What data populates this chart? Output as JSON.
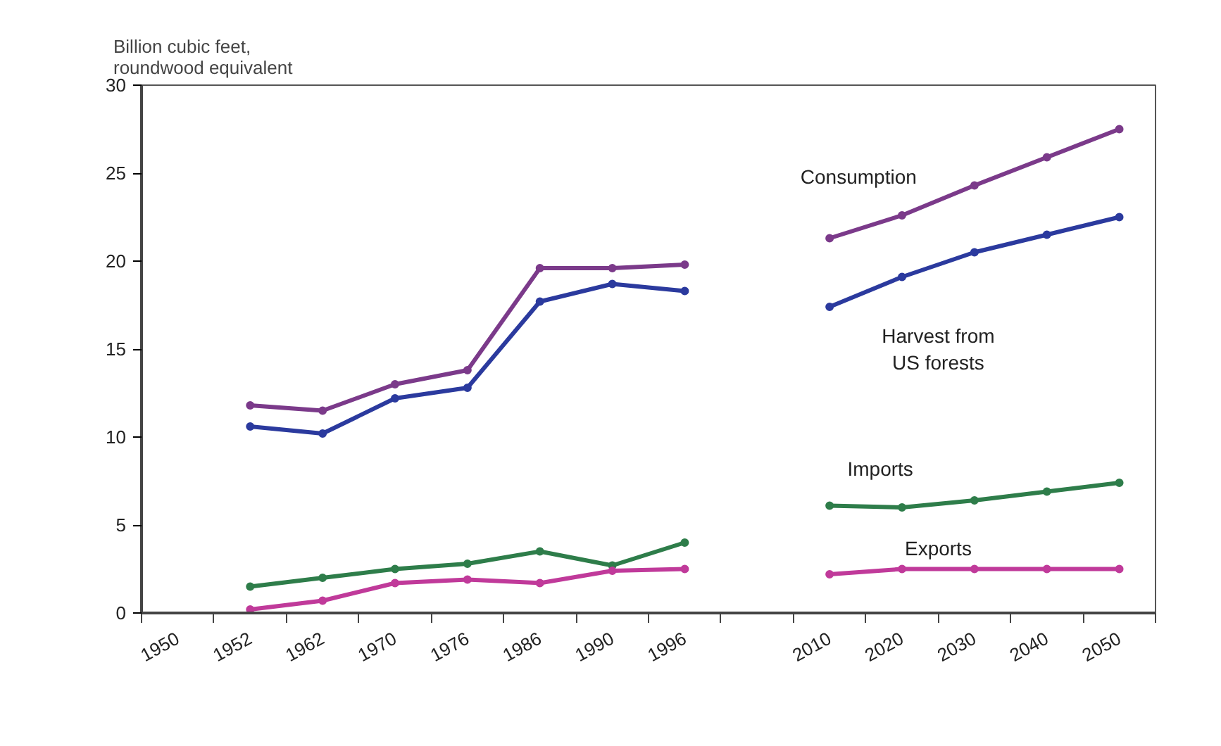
{
  "chart_data": {
    "type": "line",
    "ylabel": "Billion cubic feet,\nroundwood equivalent",
    "categories": [
      "1950",
      "1952",
      "1962",
      "1970",
      "1976",
      "1986",
      "1990",
      "1996",
      null,
      "2010",
      "2020",
      "2030",
      "2040",
      "2050"
    ],
    "series": [
      {
        "name": "Consumption",
        "color": "#7b3a8a",
        "values": [
          null,
          11.8,
          11.5,
          13.0,
          13.8,
          19.6,
          19.6,
          19.8,
          null,
          21.3,
          22.6,
          24.3,
          25.9,
          27.5
        ]
      },
      {
        "name": "Harvest from\nUS forests",
        "color": "#2b3a9e",
        "values": [
          null,
          10.6,
          10.2,
          12.2,
          12.8,
          17.7,
          18.7,
          18.3,
          null,
          17.4,
          19.1,
          20.5,
          21.5,
          22.5
        ]
      },
      {
        "name": "Imports",
        "color": "#2e7d4a",
        "values": [
          null,
          1.5,
          2.0,
          2.5,
          2.8,
          3.5,
          2.7,
          4.0,
          null,
          6.1,
          6.0,
          6.4,
          6.9,
          7.4
        ]
      },
      {
        "name": "Exports",
        "color": "#c03a9a",
        "values": [
          null,
          0.2,
          0.7,
          1.7,
          1.9,
          1.7,
          2.4,
          2.5,
          null,
          2.2,
          2.5,
          2.5,
          2.5,
          2.5
        ]
      }
    ],
    "ylim": [
      0,
      30
    ],
    "yticks": [
      0,
      5,
      10,
      15,
      20,
      25,
      30
    ],
    "grid": false,
    "marker": "circle",
    "line_style": "solid"
  }
}
